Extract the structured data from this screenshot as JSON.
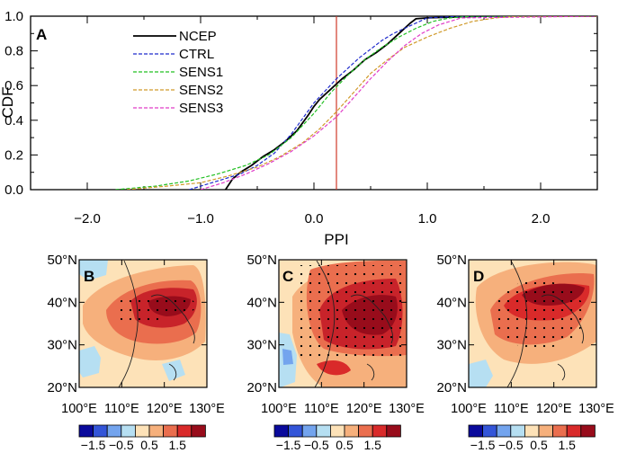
{
  "chart_data": [
    {
      "type": "line",
      "panel_label": "A",
      "xlabel": "PPI",
      "ylabel": "CDF",
      "xlim": [
        -2.5,
        2.5
      ],
      "ylim": [
        0.0,
        1.0
      ],
      "xticks": [
        "−2.0",
        "−1.0",
        "0.0",
        "1.0",
        "2.0"
      ],
      "yticks": [
        "0.0",
        "0.2",
        "0.4",
        "0.6",
        "0.8",
        "1.0"
      ],
      "reference_line_x": 0.0,
      "legend_position": "top-left",
      "series": [
        {
          "name": "NCEP",
          "color": "#000000",
          "style": "solid",
          "x": [
            -0.78,
            -0.74,
            -0.72,
            -0.65,
            -0.55,
            -0.45,
            -0.35,
            -0.25,
            -0.15,
            -0.05,
            0.0,
            0.05,
            0.15,
            0.25,
            0.35,
            0.45,
            0.55,
            0.65,
            0.75,
            0.85,
            0.9,
            1.0,
            1.5,
            2.5
          ],
          "y": [
            0.0,
            0.04,
            0.06,
            0.1,
            0.14,
            0.19,
            0.23,
            0.28,
            0.34,
            0.43,
            0.48,
            0.52,
            0.58,
            0.64,
            0.69,
            0.75,
            0.79,
            0.84,
            0.9,
            0.96,
            0.985,
            0.99,
            1.0,
            1.0
          ]
        },
        {
          "name": "CTRL",
          "color": "#1f2bcc",
          "style": "dashed",
          "x": [
            -1.1,
            -0.95,
            -0.8,
            -0.65,
            -0.5,
            -0.35,
            -0.2,
            -0.1,
            0.0,
            0.1,
            0.2,
            0.3,
            0.4,
            0.5,
            0.6,
            0.7,
            0.8,
            0.9,
            1.0,
            1.3,
            2.5
          ],
          "y": [
            0.0,
            0.03,
            0.06,
            0.09,
            0.14,
            0.21,
            0.32,
            0.41,
            0.5,
            0.57,
            0.64,
            0.7,
            0.76,
            0.81,
            0.86,
            0.9,
            0.93,
            0.96,
            0.99,
            1.0,
            1.0
          ]
        },
        {
          "name": "SENS1",
          "color": "#22c022",
          "style": "dashed",
          "x": [
            -1.75,
            -1.4,
            -1.1,
            -0.85,
            -0.6,
            -0.4,
            -0.2,
            0.0,
            0.15,
            0.3,
            0.45,
            0.6,
            0.75,
            0.9,
            1.05,
            1.2,
            1.4,
            2.5
          ],
          "y": [
            0.0,
            0.02,
            0.05,
            0.09,
            0.14,
            0.2,
            0.3,
            0.44,
            0.56,
            0.66,
            0.75,
            0.82,
            0.88,
            0.93,
            0.97,
            0.99,
            1.0,
            1.0
          ]
        },
        {
          "name": "SENS2",
          "color": "#d09a2a",
          "style": "dashed",
          "x": [
            -1.65,
            -1.3,
            -1.0,
            -0.75,
            -0.5,
            -0.3,
            -0.1,
            0.05,
            0.2,
            0.35,
            0.5,
            0.65,
            0.8,
            1.0,
            1.2,
            1.4,
            1.6,
            1.8,
            2.5
          ],
          "y": [
            0.0,
            0.02,
            0.04,
            0.08,
            0.13,
            0.19,
            0.27,
            0.35,
            0.45,
            0.56,
            0.67,
            0.75,
            0.82,
            0.88,
            0.93,
            0.97,
            0.99,
            1.0,
            1.0
          ]
        },
        {
          "name": "SENS3",
          "color": "#e03cc8",
          "style": "dashed",
          "x": [
            -1.0,
            -0.8,
            -0.6,
            -0.4,
            -0.2,
            0.0,
            0.2,
            0.35,
            0.5,
            0.65,
            0.8,
            0.95,
            1.1,
            1.3,
            2.5
          ],
          "y": [
            0.0,
            0.04,
            0.09,
            0.15,
            0.22,
            0.31,
            0.42,
            0.53,
            0.64,
            0.74,
            0.83,
            0.9,
            0.95,
            0.99,
            1.0
          ]
        }
      ]
    },
    {
      "type": "heatmap",
      "panel_label": "B",
      "x_range": [
        100,
        130
      ],
      "y_range": [
        20,
        50
      ],
      "xticks": [
        "100°E",
        "110°E",
        "120°E",
        "130°E"
      ],
      "yticks": [
        "20°N",
        "30°N",
        "40°N",
        "50°N"
      ],
      "colorbar_ticks": [
        "−1.5",
        "−0.5",
        "0.5",
        "1.5"
      ],
      "colorbar_colors": [
        "#0a0a9c",
        "#3355d8",
        "#73a4ee",
        "#b6dff2",
        "#fde2b8",
        "#f6b07c",
        "#ea6e4e",
        "#d92a2a",
        "#980c1b"
      ]
    },
    {
      "type": "heatmap",
      "panel_label": "C",
      "x_range": [
        100,
        130
      ],
      "y_range": [
        20,
        50
      ],
      "xticks": [
        "100°E",
        "110°E",
        "120°E",
        "130°E"
      ],
      "yticks": [
        "20°N",
        "30°N",
        "40°N",
        "50°N"
      ],
      "colorbar_ticks": [
        "−1.5",
        "−0.5",
        "0.5",
        "1.5"
      ],
      "colorbar_colors": [
        "#0a0a9c",
        "#3355d8",
        "#73a4ee",
        "#b6dff2",
        "#fde2b8",
        "#f6b07c",
        "#ea6e4e",
        "#d92a2a",
        "#980c1b"
      ]
    },
    {
      "type": "heatmap",
      "panel_label": "D",
      "x_range": [
        100,
        130
      ],
      "y_range": [
        20,
        50
      ],
      "xticks": [
        "100°E",
        "110°E",
        "120°E",
        "130°E"
      ],
      "yticks": [
        "20°N",
        "30°N",
        "40°N",
        "50°N"
      ],
      "colorbar_ticks": [
        "−1.5",
        "−0.5",
        "0.5",
        "1.5"
      ],
      "colorbar_colors": [
        "#0a0a9c",
        "#3355d8",
        "#73a4ee",
        "#b6dff2",
        "#fde2b8",
        "#f6b07c",
        "#ea6e4e",
        "#d92a2a",
        "#980c1b"
      ]
    }
  ]
}
